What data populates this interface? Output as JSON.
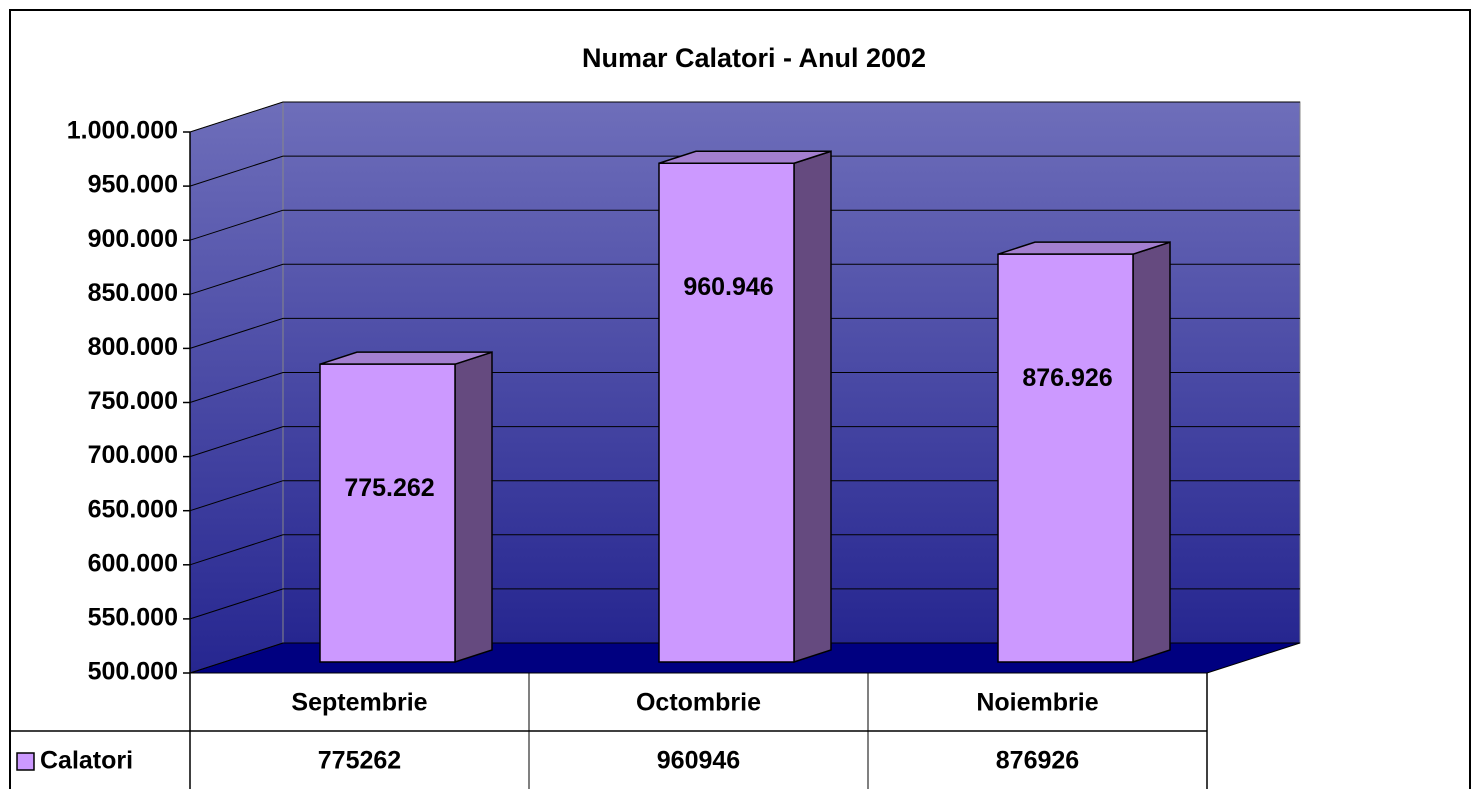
{
  "chart_data": {
    "type": "bar3d",
    "title": "Numar Calatori - Anul 2002",
    "categories": [
      "Septembrie",
      "Octombrie",
      "Noiembrie"
    ],
    "series": [
      {
        "name": "Calatori",
        "color": "#cc99ff",
        "values": [
          775262,
          960946,
          876926
        ],
        "value_labels": [
          "775.262",
          "960.946",
          "876.926"
        ]
      }
    ],
    "ylim": [
      500000,
      1000000
    ],
    "yticks": [
      {
        "value": 500000,
        "label": "500.000"
      },
      {
        "value": 550000,
        "label": "550.000"
      },
      {
        "value": 600000,
        "label": "600.000"
      },
      {
        "value": 650000,
        "label": "650.000"
      },
      {
        "value": 700000,
        "label": "700.000"
      },
      {
        "value": 750000,
        "label": "750.000"
      },
      {
        "value": 800000,
        "label": "800.000"
      },
      {
        "value": 850000,
        "label": "850.000"
      },
      {
        "value": 900000,
        "label": "900.000"
      },
      {
        "value": 950000,
        "label": "950.000"
      },
      {
        "value": 1000000,
        "label": "1.000.000"
      }
    ],
    "grid": true,
    "data_table": true
  }
}
